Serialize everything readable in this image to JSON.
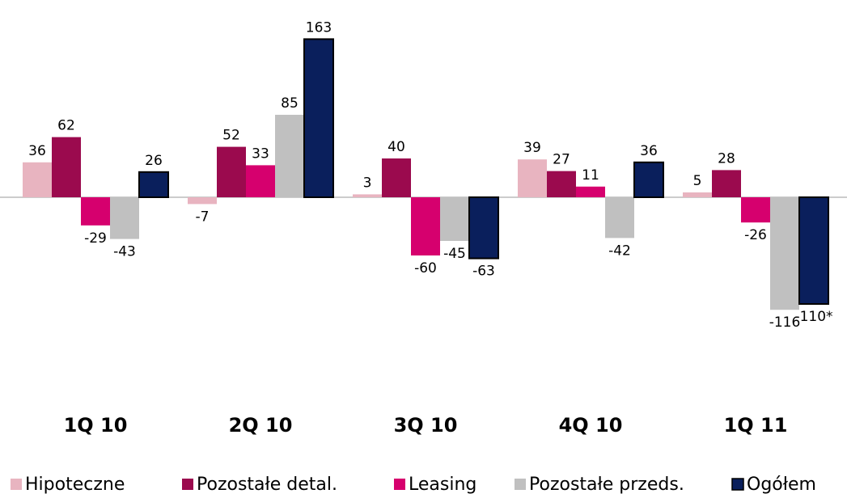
{
  "chart_data": {
    "type": "bar",
    "categories": [
      "1Q 10",
      "2Q 10",
      "3Q 10",
      "4Q 10",
      "1Q 11"
    ],
    "series": [
      {
        "name": "Hipoteczne",
        "color": "#e8b4c0",
        "values": [
          36,
          -7,
          3,
          39,
          5
        ]
      },
      {
        "name": "Pozostałe detal.",
        "color": "#9b0a4e",
        "values": [
          62,
          52,
          40,
          27,
          28
        ]
      },
      {
        "name": "Leasing",
        "color": "#d6006e",
        "values": [
          -29,
          33,
          -60,
          11,
          -26
        ]
      },
      {
        "name": "Pozostałe przeds.",
        "color": "#c0c0c0",
        "values": [
          -43,
          85,
          -45,
          -42,
          -116
        ]
      },
      {
        "name": "Ogółem",
        "color": "#0a1f5c",
        "values": [
          26,
          163,
          -63,
          36,
          -110
        ],
        "value_labels": [
          "26",
          "163",
          "-63",
          "36",
          "-110*"
        ]
      }
    ],
    "ylim": [
      -200,
      170
    ],
    "legend": "bottom"
  }
}
